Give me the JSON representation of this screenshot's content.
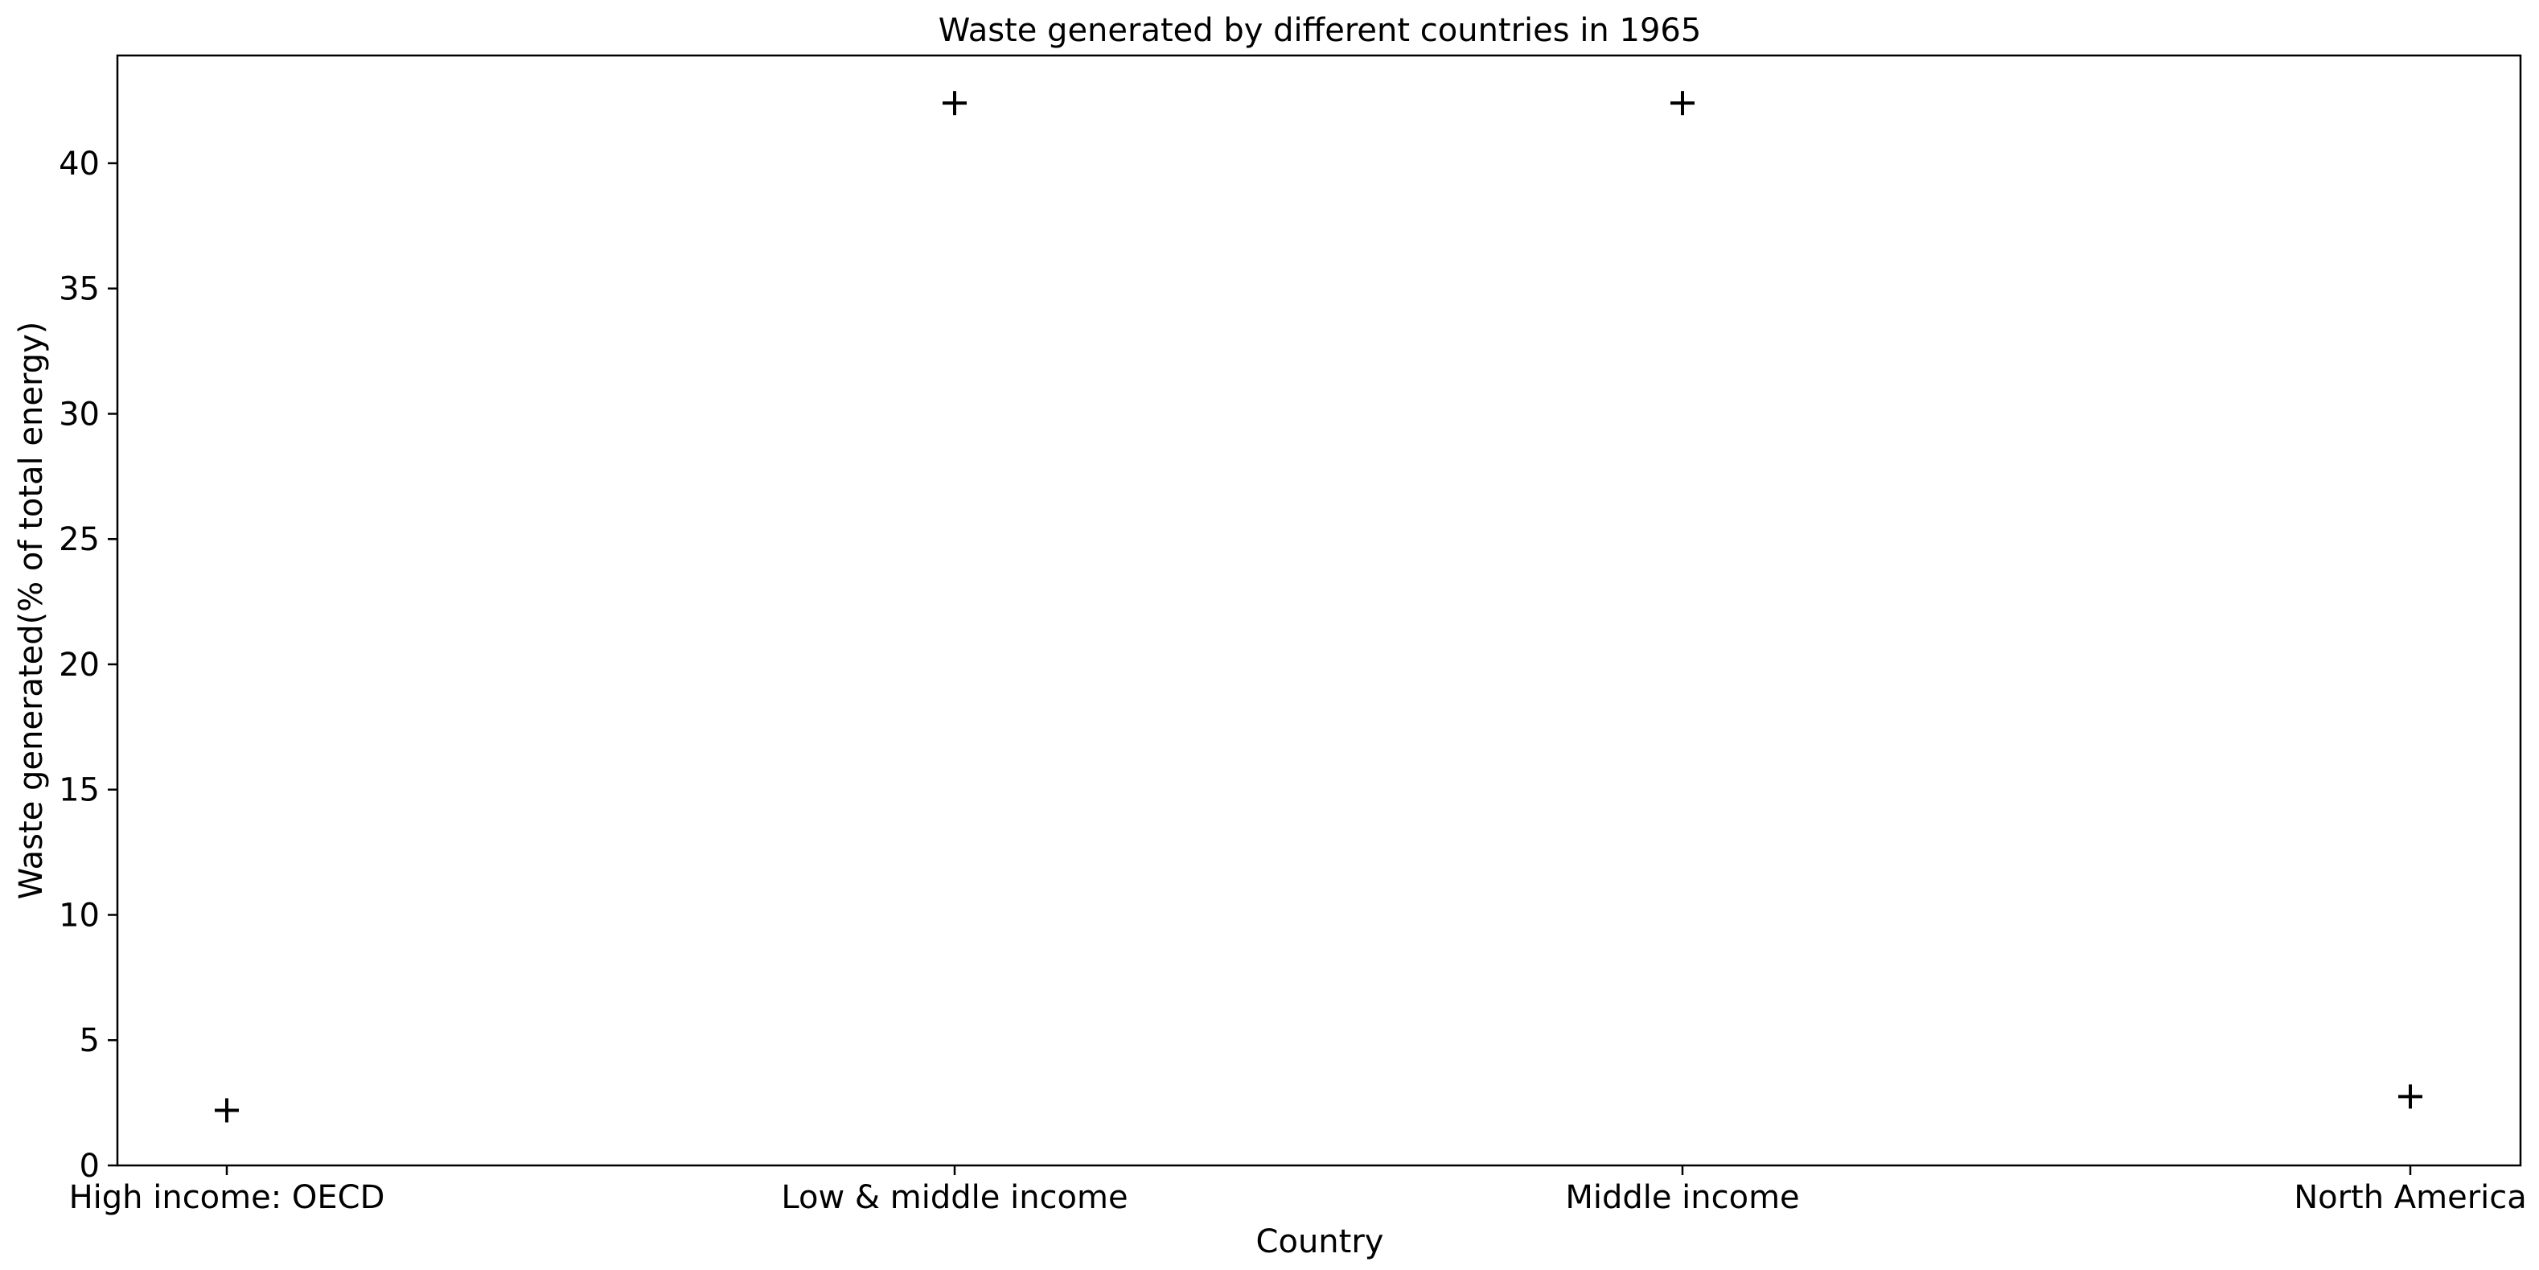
{
  "chart_data": {
    "type": "scatter",
    "title": "Waste generated by different countries in 1965",
    "xlabel": "Country",
    "ylabel": "Waste generated(% of total energy)",
    "categories": [
      "High income: OECD",
      "Low & middle income",
      "Middle income",
      "North America"
    ],
    "values": [
      2.2,
      42.4,
      42.4,
      2.75
    ],
    "ylim": [
      0,
      44.3
    ],
    "yticks": [
      0,
      5,
      10,
      15,
      20,
      25,
      30,
      35,
      40
    ],
    "marker": "plus",
    "marker_color": "#000000",
    "grid": false,
    "legend": "none"
  }
}
